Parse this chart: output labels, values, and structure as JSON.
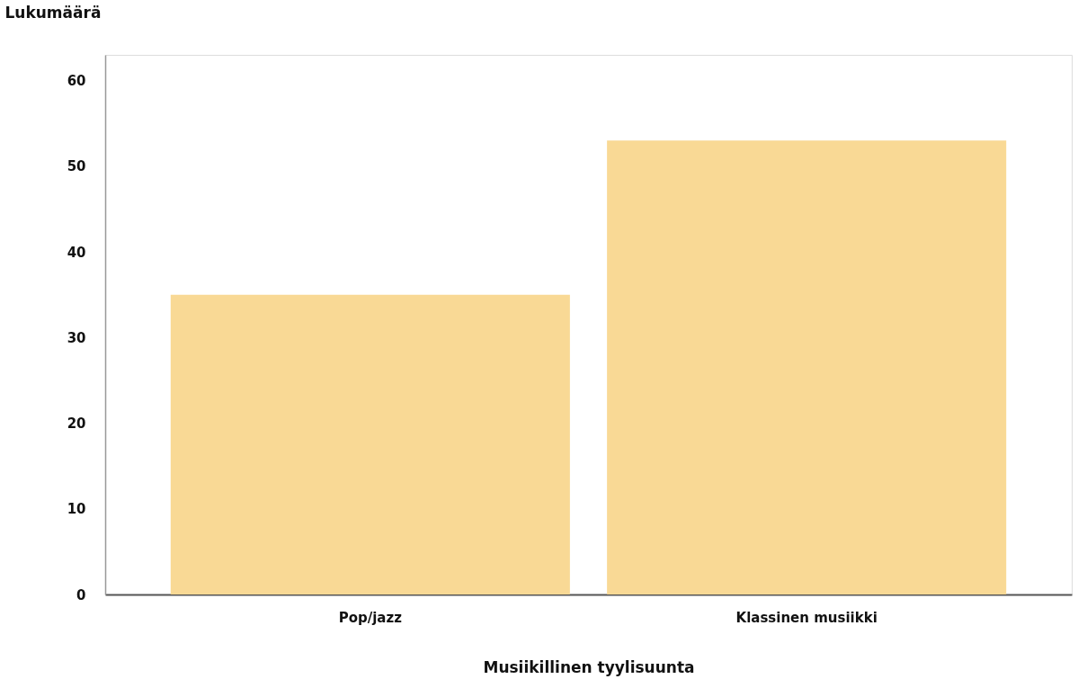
{
  "chart_data": {
    "type": "bar",
    "xlabel": "Musiikillinen tyylisuunta",
    "ylabel": "Lukumäärä",
    "categories": [
      "Pop/jazz",
      "Klassinen musiikki"
    ],
    "values": [
      35,
      53
    ],
    "color": "#f9d995",
    "ylim": [
      0,
      63
    ],
    "yticks": [
      0,
      10,
      20,
      30,
      40,
      50,
      60
    ],
    "grid": false
  }
}
